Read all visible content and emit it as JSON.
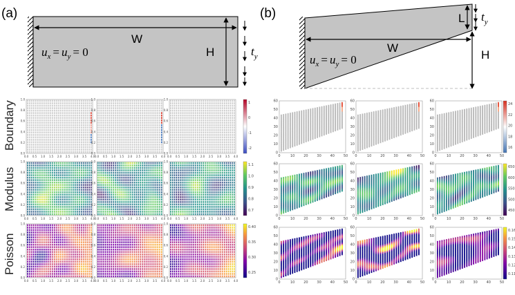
{
  "figure": {
    "panel_a": {
      "label": "(a)",
      "width_label": "W",
      "height_label": "H",
      "traction_label": {
        "base": "t",
        "sub": "y"
      },
      "bc_label": {
        "u": "u",
        "x": "x",
        "eq1": "=",
        "uy": "u",
        "y": "y",
        "eq2": "= 0"
      }
    },
    "panel_b": {
      "label": "(b)",
      "width_label": "W",
      "height_label": "H",
      "l_label": "L",
      "traction_label": {
        "base": "t",
        "sub": "y"
      },
      "bc_label": {
        "u": "u",
        "x": "x",
        "eq1": "=",
        "uy": "u",
        "y": "y",
        "eq2": "= 0"
      }
    },
    "row_labels": [
      "Boundary",
      "Modulus",
      "Poisson"
    ],
    "colors": {
      "specimen_fill": "#c4c4c4",
      "boundary_low": "#3b6fb6",
      "boundary_high": "#d7301f",
      "viridis_dark": "#440154",
      "viridis_light": "#fde725",
      "plasma_dark": "#0d0887",
      "plasma_light": "#f0f921"
    }
  },
  "chart_data": [
    {
      "type": "heatmap",
      "panel": "a",
      "row": "Boundary",
      "x_ticks": [
        "0.0",
        "0.5",
        "1.0",
        "1.5",
        "2.0",
        "2.5",
        "3.0",
        "3.5",
        "4.0"
      ],
      "y_ticks": [
        "0.0",
        "0.2",
        "0.4",
        "0.6",
        "0.8",
        "1.0"
      ],
      "colorbar_ticks": [
        "1",
        "0",
        "-1",
        "-2"
      ]
    },
    {
      "type": "heatmap",
      "panel": "a",
      "row": "Modulus",
      "x_ticks": [
        "0.0",
        "0.5",
        "1.0",
        "1.5",
        "2.0",
        "2.5",
        "3.0",
        "3.5",
        "4.0"
      ],
      "y_ticks": [
        "0.0",
        "0.2",
        "0.4",
        "0.6",
        "0.8",
        "1.0"
      ],
      "colorbar_ticks": [
        "1.1",
        "1.0",
        "0.9",
        "0.8",
        "0.7"
      ]
    },
    {
      "type": "heatmap",
      "panel": "a",
      "row": "Poisson",
      "x_ticks": [
        "0.0",
        "0.5",
        "1.0",
        "1.5",
        "2.0",
        "2.5",
        "3.0",
        "3.5",
        "4.0"
      ],
      "y_ticks": [
        "0.0",
        "0.2",
        "0.4",
        "0.6",
        "0.8",
        "1.0"
      ],
      "colorbar_ticks": [
        "0.40",
        "0.35",
        "0.30",
        "0.25"
      ]
    },
    {
      "type": "heatmap",
      "panel": "b",
      "row": "Boundary",
      "x_ticks": [
        "0",
        "10",
        "20",
        "30",
        "40",
        "50"
      ],
      "y_ticks": [
        "0",
        "10",
        "20",
        "30",
        "40",
        "50",
        "60"
      ],
      "colorbar_ticks": [
        "24",
        "22",
        "20",
        "18",
        "16"
      ]
    },
    {
      "type": "heatmap",
      "panel": "b",
      "row": "Modulus",
      "x_ticks": [
        "0",
        "10",
        "20",
        "30",
        "40",
        "50"
      ],
      "y_ticks": [
        "0",
        "10",
        "20",
        "30",
        "40",
        "50",
        "60"
      ],
      "colorbar_ticks": [
        "650",
        "600",
        "550",
        "500",
        "450"
      ]
    },
    {
      "type": "heatmap",
      "panel": "b",
      "row": "Poisson",
      "x_ticks": [
        "0",
        "10",
        "20",
        "30",
        "40",
        "50"
      ],
      "y_ticks": [
        "0",
        "10",
        "20",
        "30",
        "40",
        "50",
        "60"
      ],
      "colorbar_ticks": [
        "0.16",
        "0.15",
        "0.14",
        "0.13",
        "0.12",
        "0.11"
      ]
    }
  ]
}
